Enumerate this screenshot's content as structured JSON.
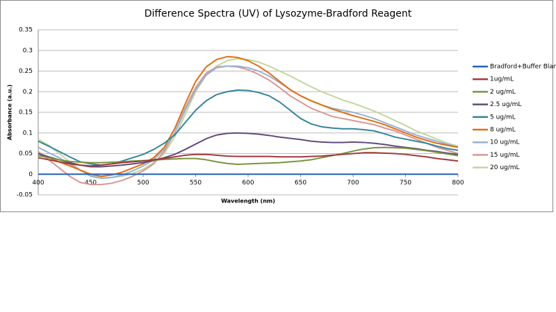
{
  "chart_data": {
    "type": "line",
    "title": "Difference Spectra (UV) of Lysozyme-Bradford Reagent",
    "x_label": "Wavelength (nm)",
    "y_label": "Absorbance (a.u.)",
    "xlim": [
      400,
      800
    ],
    "xticks": [
      400,
      450,
      500,
      550,
      600,
      650,
      700,
      750,
      800
    ],
    "ylim": [
      -0.05,
      0.35
    ],
    "yticks": [
      -0.05,
      0,
      0.05,
      0.1,
      0.15,
      0.2,
      0.25,
      0.3,
      0.35
    ],
    "grid": true,
    "legend": "right",
    "x": [
      400,
      410,
      420,
      430,
      440,
      450,
      460,
      470,
      480,
      490,
      500,
      510,
      520,
      530,
      540,
      550,
      560,
      570,
      580,
      590,
      600,
      610,
      620,
      630,
      640,
      650,
      660,
      670,
      680,
      690,
      700,
      710,
      720,
      730,
      740,
      750,
      760,
      770,
      780,
      790,
      800
    ],
    "series": [
      {
        "name": "Bradford+Buffer Blank",
        "color": "#1f5fbf",
        "values": [
          0,
          0,
          0,
          0,
          0,
          0,
          0,
          0,
          0,
          0,
          0,
          0,
          0,
          0,
          0,
          0,
          0,
          0,
          0,
          0,
          0,
          0,
          0,
          0,
          0,
          0,
          0,
          0,
          0,
          0,
          0,
          0,
          0,
          0,
          0,
          0,
          0,
          0,
          0,
          0,
          0
        ]
      },
      {
        "name": "1ug/mL",
        "color": "#a0393a",
        "values": [
          0.04,
          0.035,
          0.03,
          0.025,
          0.022,
          0.02,
          0.022,
          0.025,
          0.028,
          0.03,
          0.032,
          0.035,
          0.038,
          0.042,
          0.046,
          0.048,
          0.048,
          0.046,
          0.044,
          0.043,
          0.043,
          0.043,
          0.043,
          0.042,
          0.042,
          0.042,
          0.043,
          0.044,
          0.046,
          0.048,
          0.05,
          0.052,
          0.052,
          0.051,
          0.05,
          0.048,
          0.045,
          0.042,
          0.038,
          0.035,
          0.032
        ]
      },
      {
        "name": "2 ug/mL",
        "color": "#77933c",
        "values": [
          0.045,
          0.04,
          0.035,
          0.031,
          0.029,
          0.028,
          0.028,
          0.029,
          0.03,
          0.032,
          0.033,
          0.034,
          0.036,
          0.037,
          0.038,
          0.038,
          0.035,
          0.03,
          0.026,
          0.024,
          0.025,
          0.026,
          0.027,
          0.028,
          0.03,
          0.032,
          0.035,
          0.04,
          0.045,
          0.05,
          0.056,
          0.061,
          0.064,
          0.065,
          0.064,
          0.063,
          0.06,
          0.057,
          0.053,
          0.049,
          0.045
        ]
      },
      {
        "name": "2.5 ug/mL",
        "color": "#604a7b",
        "values": [
          0.05,
          0.042,
          0.035,
          0.028,
          0.022,
          0.018,
          0.018,
          0.02,
          0.022,
          0.025,
          0.028,
          0.033,
          0.04,
          0.048,
          0.06,
          0.073,
          0.086,
          0.095,
          0.099,
          0.1,
          0.099,
          0.097,
          0.094,
          0.09,
          0.087,
          0.084,
          0.08,
          0.078,
          0.077,
          0.077,
          0.078,
          0.077,
          0.075,
          0.072,
          0.068,
          0.065,
          0.062,
          0.058,
          0.055,
          0.051,
          0.048
        ]
      },
      {
        "name": "5 ug/mL",
        "color": "#31859c",
        "values": [
          0.08,
          0.068,
          0.055,
          0.042,
          0.03,
          0.025,
          0.022,
          0.025,
          0.032,
          0.04,
          0.048,
          0.06,
          0.075,
          0.095,
          0.125,
          0.155,
          0.178,
          0.193,
          0.2,
          0.204,
          0.203,
          0.198,
          0.19,
          0.175,
          0.155,
          0.135,
          0.122,
          0.115,
          0.112,
          0.11,
          0.11,
          0.108,
          0.105,
          0.098,
          0.09,
          0.085,
          0.08,
          0.075,
          0.068,
          0.062,
          0.058
        ]
      },
      {
        "name": "8 ug/mL",
        "color": "#e46c0a",
        "values": [
          0.05,
          0.04,
          0.03,
          0.02,
          0.01,
          0,
          -0.005,
          -0.002,
          0.005,
          0.015,
          0.025,
          0.04,
          0.065,
          0.11,
          0.17,
          0.225,
          0.26,
          0.278,
          0.285,
          0.283,
          0.275,
          0.262,
          0.245,
          0.225,
          0.205,
          0.19,
          0.178,
          0.168,
          0.158,
          0.15,
          0.142,
          0.135,
          0.128,
          0.12,
          0.11,
          0.1,
          0.09,
          0.082,
          0.075,
          0.07,
          0.065
        ]
      },
      {
        "name": "10 ug/mL",
        "color": "#95b3d7",
        "values": [
          0.065,
          0.052,
          0.04,
          0.025,
          0.01,
          -0.005,
          -0.01,
          -0.008,
          -0.002,
          0.008,
          0.02,
          0.035,
          0.06,
          0.1,
          0.155,
          0.205,
          0.24,
          0.258,
          0.262,
          0.262,
          0.258,
          0.25,
          0.238,
          0.222,
          0.205,
          0.19,
          0.178,
          0.168,
          0.16,
          0.155,
          0.15,
          0.143,
          0.135,
          0.125,
          0.115,
          0.105,
          0.095,
          0.087,
          0.08,
          0.072,
          0.066
        ]
      },
      {
        "name": "15 ug/mL",
        "color": "#d99694",
        "values": [
          0.055,
          0.035,
          0.015,
          -0.005,
          -0.02,
          -0.025,
          -0.025,
          -0.022,
          -0.015,
          -0.005,
          0.008,
          0.025,
          0.055,
          0.1,
          0.16,
          0.21,
          0.245,
          0.26,
          0.262,
          0.26,
          0.253,
          0.242,
          0.228,
          0.21,
          0.19,
          0.175,
          0.16,
          0.15,
          0.14,
          0.135,
          0.13,
          0.125,
          0.12,
          0.112,
          0.105,
          0.095,
          0.085,
          0.075,
          0.065,
          0.058,
          0.05
        ]
      },
      {
        "name": "20 ug/mL",
        "color": "#c3d69b",
        "values": [
          0.085,
          0.07,
          0.05,
          0.03,
          0.01,
          -0.003,
          -0.008,
          -0.008,
          -0.005,
          0.002,
          0.012,
          0.028,
          0.05,
          0.09,
          0.145,
          0.2,
          0.24,
          0.262,
          0.275,
          0.28,
          0.278,
          0.272,
          0.262,
          0.25,
          0.238,
          0.225,
          0.212,
          0.2,
          0.19,
          0.18,
          0.172,
          0.163,
          0.153,
          0.142,
          0.13,
          0.118,
          0.105,
          0.095,
          0.085,
          0.075,
          0.068
        ]
      }
    ]
  }
}
